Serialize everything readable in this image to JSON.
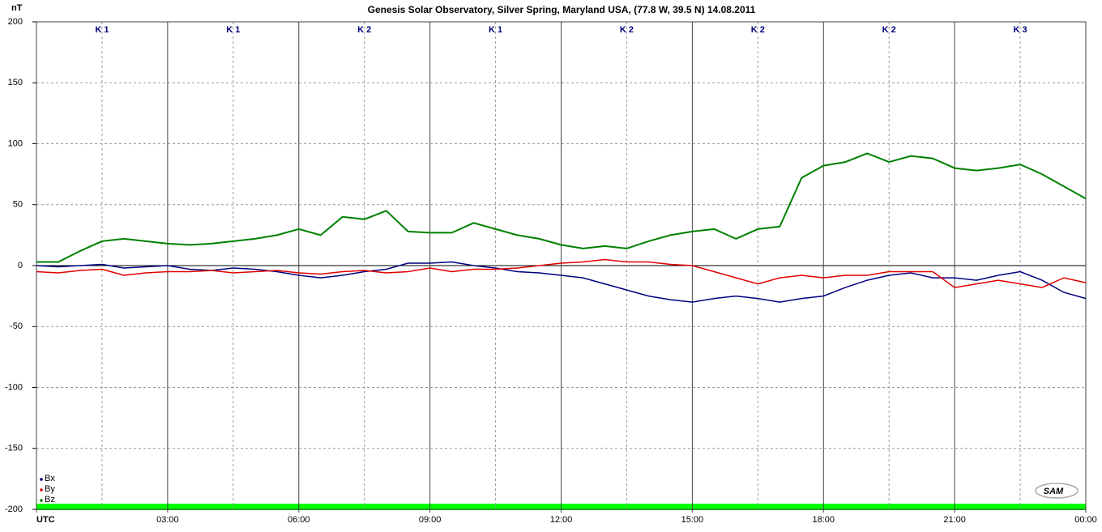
{
  "chart_data": {
    "type": "line",
    "title": "Genesis Solar Observatory, Silver Spring, Maryland USA, (77.8 W, 39.5 N)  14.08.2011",
    "ylabel": "nT",
    "x": [
      0,
      0.5,
      1,
      1.5,
      2,
      2.5,
      3,
      3.5,
      4,
      4.5,
      5,
      5.5,
      6,
      6.5,
      7,
      7.5,
      8,
      8.5,
      9,
      9.5,
      10,
      10.5,
      11,
      11.5,
      12,
      12.5,
      13,
      13.5,
      14,
      14.5,
      15,
      15.5,
      16,
      16.5,
      17,
      17.5,
      18,
      18.5,
      19,
      19.5,
      20,
      20.5,
      21,
      21.5,
      22,
      22.5,
      23,
      23.5,
      24
    ],
    "series": [
      {
        "name": "Bx",
        "color": "#000080",
        "values": [
          0,
          -1,
          0,
          1,
          -2,
          -1,
          0,
          -3,
          -4,
          -2,
          -3,
          -5,
          -8,
          -10,
          -8,
          -5,
          -3,
          2,
          2,
          3,
          0,
          -2,
          -5,
          -6,
          -8,
          -10,
          -15,
          -20,
          -25,
          -28,
          -30,
          -27,
          -25,
          -27,
          -30,
          -27,
          -25,
          -18,
          -12,
          -8,
          -6,
          -10,
          -10,
          -12,
          -8,
          -5,
          -12,
          -22,
          -27
        ]
      },
      {
        "name": "By",
        "color": "#e00000",
        "values": [
          -5,
          -6,
          -4,
          -3,
          -8,
          -6,
          -5,
          -5,
          -4,
          -6,
          -5,
          -4,
          -6,
          -7,
          -5,
          -4,
          -6,
          -5,
          -2,
          -5,
          -3,
          -3,
          -2,
          0,
          2,
          3,
          5,
          3,
          3,
          1,
          0,
          -5,
          -10,
          -15,
          -10,
          -8,
          -10,
          -8,
          -8,
          -5,
          -5,
          -5,
          -18,
          -15,
          -12,
          -15,
          -18,
          -10,
          -14
        ]
      },
      {
        "name": "Bz",
        "color": "#008000",
        "values": [
          3,
          3,
          12,
          20,
          22,
          20,
          18,
          17,
          18,
          20,
          22,
          25,
          30,
          25,
          40,
          38,
          45,
          28,
          27,
          27,
          35,
          30,
          25,
          22,
          17,
          14,
          16,
          14,
          20,
          25,
          28,
          30,
          22,
          30,
          32,
          72,
          82,
          85,
          92,
          85,
          90,
          88,
          80,
          78,
          80,
          83,
          75,
          65,
          55
        ]
      }
    ],
    "xlim": [
      0,
      24
    ],
    "xticks": [
      {
        "value": 0,
        "label": "UTC"
      },
      {
        "value": 3,
        "label": "03:00"
      },
      {
        "value": 6,
        "label": "06:00"
      },
      {
        "value": 9,
        "label": "09:00"
      },
      {
        "value": 12,
        "label": "12:00"
      },
      {
        "value": 15,
        "label": "15:00"
      },
      {
        "value": 18,
        "label": "18:00"
      },
      {
        "value": 21,
        "label": "21:00"
      },
      {
        "value": 24,
        "label": "00:00"
      }
    ],
    "xminor_ticks": [
      1.5,
      4.5,
      7.5,
      10.5,
      13.5,
      16.5,
      19.5,
      22.5
    ],
    "ylim": [
      -200,
      200
    ],
    "yticks": [
      200,
      150,
      100,
      50,
      0,
      -50,
      -100,
      -150,
      -200
    ],
    "grid": true,
    "legend": "lower left",
    "k_index": [
      "K 1",
      "K 1",
      "K 2",
      "K 1",
      "K 2",
      "K 2",
      "K 2",
      "K 3"
    ],
    "logo": "SAM"
  }
}
